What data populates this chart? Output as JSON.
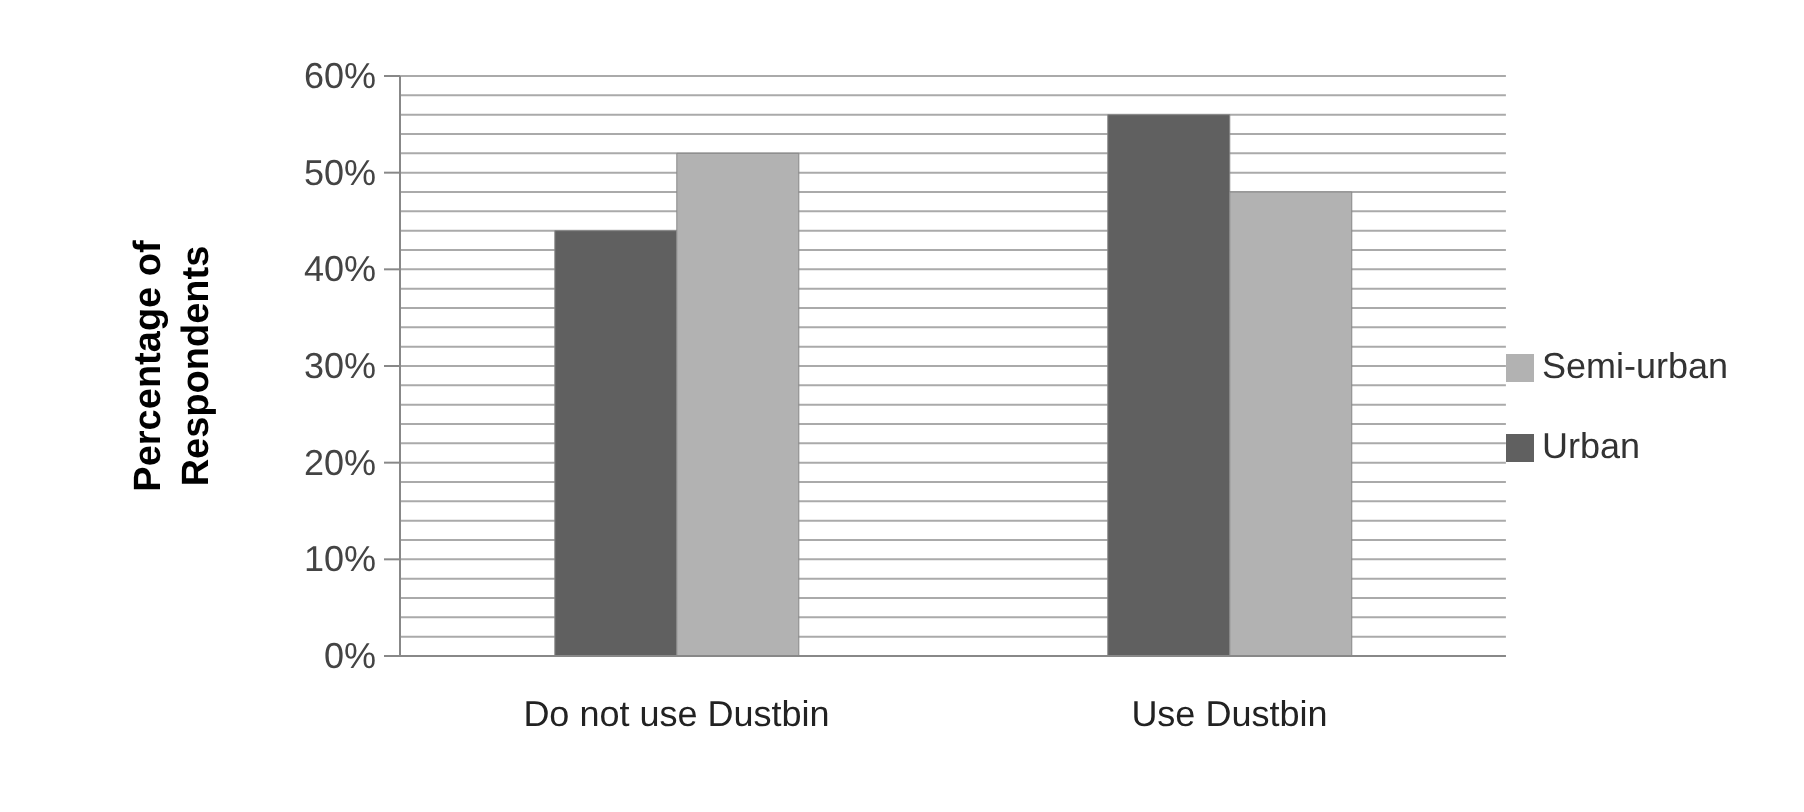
{
  "chart_data": {
    "type": "bar",
    "ylabel": "Percentage of Respondents",
    "categories": [
      "Do not use Dustbin",
      "Use Dustbin"
    ],
    "series": [
      {
        "name": "Urban",
        "color": "#606060",
        "values": [
          44,
          56
        ]
      },
      {
        "name": "Semi-urban",
        "color": "#b2b2b2",
        "values": [
          52,
          48
        ]
      }
    ],
    "ylim": [
      0,
      60
    ],
    "yticks": [
      {
        "value": 0,
        "label": "0%"
      },
      {
        "value": 2,
        "label": null
      },
      {
        "value": 4,
        "label": null
      },
      {
        "value": 6,
        "label": null
      },
      {
        "value": 8,
        "label": null
      },
      {
        "value": 10,
        "label": "10%"
      },
      {
        "value": 12,
        "label": null
      },
      {
        "value": 14,
        "label": null
      },
      {
        "value": 16,
        "label": null
      },
      {
        "value": 18,
        "label": null
      },
      {
        "value": 20,
        "label": "20%"
      },
      {
        "value": 22,
        "label": null
      },
      {
        "value": 24,
        "label": null
      },
      {
        "value": 26,
        "label": null
      },
      {
        "value": 28,
        "label": null
      },
      {
        "value": 30,
        "label": "30%"
      },
      {
        "value": 32,
        "label": null
      },
      {
        "value": 34,
        "label": null
      },
      {
        "value": 36,
        "label": null
      },
      {
        "value": 38,
        "label": null
      },
      {
        "value": 40,
        "label": "40%"
      },
      {
        "value": 42,
        "label": null
      },
      {
        "value": 44,
        "label": null
      },
      {
        "value": 46,
        "label": null
      },
      {
        "value": 48,
        "label": null
      },
      {
        "value": 50,
        "label": "50%"
      },
      {
        "value": 52,
        "label": null
      },
      {
        "value": 54,
        "label": null
      },
      {
        "value": 56,
        "label": null
      },
      {
        "value": 58,
        "label": null
      },
      {
        "value": 60,
        "label": "60%"
      }
    ],
    "grid": "y",
    "legend": "right"
  }
}
